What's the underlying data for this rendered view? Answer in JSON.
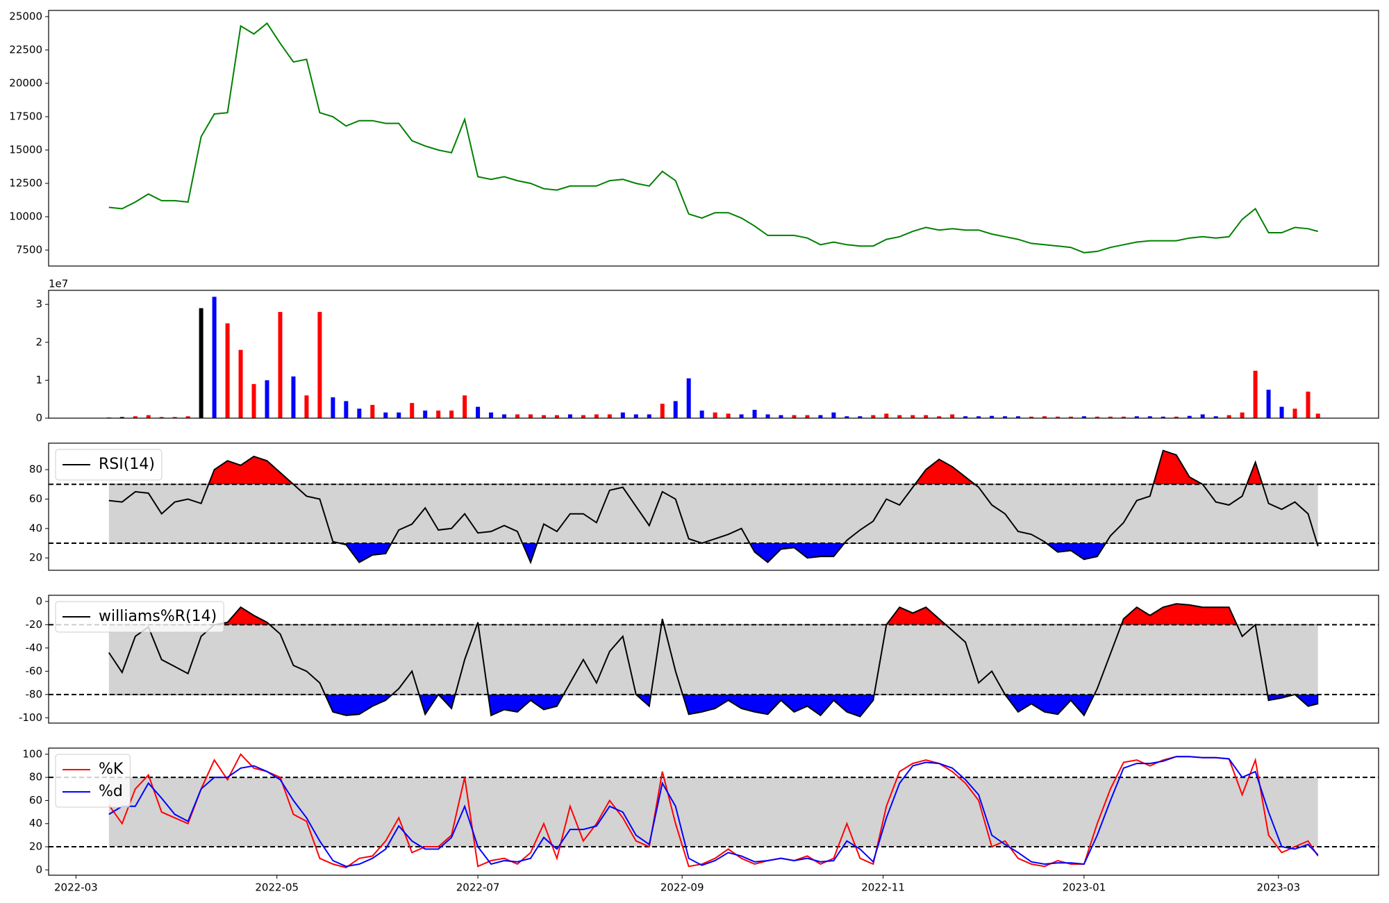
{
  "chart_data": [
    {
      "type": "line",
      "x": [
        10,
        14,
        18,
        22,
        26,
        30,
        34,
        38,
        42,
        46,
        50,
        54,
        58,
        62,
        66,
        70,
        74,
        78,
        82,
        86,
        90,
        94,
        98,
        102,
        106,
        110,
        114,
        118,
        122,
        126,
        130,
        134,
        138,
        142,
        146,
        150,
        154,
        158,
        162,
        166,
        170,
        174,
        178,
        182,
        186,
        190,
        194,
        198,
        202,
        206,
        210,
        214,
        218,
        222,
        226,
        230,
        234,
        238,
        242,
        246,
        250,
        254,
        258,
        262,
        266,
        270,
        274,
        278,
        282,
        286,
        290,
        294,
        298,
        302,
        306,
        310,
        314,
        318,
        322,
        326,
        330,
        334,
        338,
        342,
        346,
        350,
        354,
        358,
        362,
        366,
        370,
        374,
        377
      ],
      "series": [
        {
          "color": "green",
          "values": [
            10700,
            10600,
            11100,
            11700,
            11200,
            11200,
            11100,
            16000,
            17700,
            17800,
            24300,
            23700,
            24500,
            23000,
            21600,
            21800,
            17800,
            17500,
            16800,
            17200,
            17200,
            17000,
            17000,
            15700,
            15300,
            15000,
            14800,
            17300,
            13000,
            12800,
            13000,
            12700,
            12500,
            12100,
            12000,
            12300,
            12300,
            12300,
            12700,
            12800,
            12500,
            12300,
            13400,
            12700,
            10200,
            9900,
            10300,
            10300,
            9900,
            9300,
            8600,
            8600,
            8600,
            8400,
            7900,
            8100,
            7900,
            7800,
            7800,
            8300,
            8500,
            8900,
            9200,
            9000,
            9100,
            9000,
            9000,
            8700,
            8500,
            8300,
            8000,
            7900,
            7800,
            7700,
            7300,
            7400,
            7700,
            7900,
            8100,
            8200,
            8200,
            8200,
            8400,
            8500,
            8400,
            8500,
            9800,
            10600,
            8800,
            8800,
            9200,
            9100,
            8900
          ]
        }
      ],
      "xlim": [
        -8.3,
        395.4
      ],
      "ylim": [
        6302,
        25466
      ],
      "yticks": [
        7500,
        10000,
        12500,
        15000,
        17500,
        20000,
        22500,
        25000
      ]
    },
    {
      "type": "bar",
      "x": [
        10,
        14,
        18,
        22,
        26,
        30,
        34,
        38,
        42,
        46,
        50,
        54,
        58,
        62,
        66,
        70,
        74,
        78,
        82,
        86,
        90,
        94,
        98,
        102,
        106,
        110,
        114,
        118,
        122,
        126,
        130,
        134,
        138,
        142,
        146,
        150,
        154,
        158,
        162,
        166,
        170,
        174,
        178,
        182,
        186,
        190,
        194,
        198,
        202,
        206,
        210,
        214,
        218,
        222,
        226,
        230,
        234,
        238,
        242,
        246,
        250,
        254,
        258,
        262,
        266,
        270,
        274,
        278,
        282,
        286,
        290,
        294,
        298,
        302,
        306,
        310,
        314,
        318,
        322,
        326,
        330,
        334,
        338,
        342,
        346,
        350,
        354,
        358,
        362,
        366,
        370,
        374,
        377
      ],
      "values": [
        0.02,
        0.03,
        0.05,
        0.08,
        0.03,
        0.03,
        0.05,
        2.9,
        3.2,
        2.5,
        1.8,
        0.9,
        1.0,
        2.8,
        1.1,
        0.6,
        2.8,
        0.55,
        0.45,
        0.25,
        0.35,
        0.15,
        0.15,
        0.4,
        0.2,
        0.2,
        0.2,
        0.6,
        0.3,
        0.15,
        0.1,
        0.1,
        0.1,
        0.08,
        0.08,
        0.1,
        0.08,
        0.1,
        0.1,
        0.15,
        0.1,
        0.1,
        0.38,
        0.45,
        1.05,
        0.2,
        0.15,
        0.12,
        0.1,
        0.22,
        0.1,
        0.08,
        0.08,
        0.08,
        0.08,
        0.15,
        0.05,
        0.05,
        0.08,
        0.12,
        0.08,
        0.08,
        0.08,
        0.05,
        0.1,
        0.05,
        0.05,
        0.06,
        0.05,
        0.05,
        0.04,
        0.05,
        0.04,
        0.04,
        0.05,
        0.04,
        0.04,
        0.04,
        0.05,
        0.05,
        0.04,
        0.04,
        0.06,
        0.1,
        0.05,
        0.08,
        0.15,
        1.25,
        0.75,
        0.3,
        0.25,
        0.7,
        0.12
      ],
      "colors": [
        "red",
        "black",
        "red",
        "red",
        "red",
        "red",
        "red",
        "black",
        "blue",
        "red",
        "red",
        "red",
        "blue",
        "red",
        "blue",
        "red",
        "red",
        "blue",
        "blue",
        "blue",
        "red",
        "blue",
        "blue",
        "red",
        "blue",
        "red",
        "red",
        "red",
        "blue",
        "blue",
        "blue",
        "red",
        "red",
        "red",
        "red",
        "blue",
        "red",
        "red",
        "red",
        "blue",
        "blue",
        "blue",
        "red",
        "blue",
        "blue",
        "blue",
        "red",
        "red",
        "blue",
        "blue",
        "blue",
        "blue",
        "red",
        "red",
        "blue",
        "blue",
        "blue",
        "blue",
        "red",
        "red",
        "red",
        "red",
        "red",
        "red",
        "red",
        "blue",
        "blue",
        "blue",
        "blue",
        "blue",
        "red",
        "red",
        "red",
        "red",
        "blue",
        "red",
        "red",
        "red",
        "blue",
        "blue",
        "blue",
        "red",
        "blue",
        "blue",
        "blue",
        "red",
        "red",
        "red",
        "blue",
        "blue",
        "red",
        "red",
        "red"
      ],
      "y_multiplier": "1e7",
      "xlim": [
        -8.3,
        395.4
      ],
      "ylim": [
        0,
        3.37
      ],
      "yticks": [
        0,
        1,
        2,
        3
      ]
    },
    {
      "type": "line",
      "x": [
        10,
        14,
        18,
        22,
        26,
        30,
        34,
        38,
        42,
        46,
        50,
        54,
        58,
        62,
        66,
        70,
        74,
        78,
        82,
        86,
        90,
        94,
        98,
        102,
        106,
        110,
        114,
        118,
        122,
        126,
        130,
        134,
        138,
        142,
        146,
        150,
        154,
        158,
        162,
        166,
        170,
        174,
        178,
        182,
        186,
        190,
        194,
        198,
        202,
        206,
        210,
        214,
        218,
        222,
        226,
        230,
        234,
        238,
        242,
        246,
        250,
        254,
        258,
        262,
        266,
        270,
        274,
        278,
        282,
        286,
        290,
        294,
        298,
        302,
        306,
        310,
        314,
        318,
        322,
        326,
        330,
        334,
        338,
        342,
        346,
        350,
        354,
        358,
        362,
        366,
        370,
        374,
        377
      ],
      "series": [
        {
          "name": "RSI(14)",
          "color": "black",
          "values": [
            59,
            58,
            65,
            64,
            50,
            58,
            60,
            57,
            80,
            86,
            83,
            89,
            86,
            78,
            70,
            62,
            60,
            31,
            29,
            17,
            22,
            23,
            39,
            43,
            54,
            39,
            40,
            50,
            37,
            38,
            42,
            38,
            17,
            43,
            38,
            50,
            50,
            44,
            66,
            68,
            55,
            42,
            65,
            60,
            33,
            30,
            33,
            36,
            40,
            24,
            17,
            26,
            27,
            20,
            21,
            21,
            32,
            39,
            45,
            60,
            56,
            68,
            80,
            87,
            82,
            75,
            68,
            56,
            50,
            38,
            36,
            31,
            24,
            25,
            19,
            21,
            35,
            44,
            59,
            62,
            93,
            90,
            75,
            70,
            58,
            56,
            62,
            85,
            57,
            53,
            58,
            50,
            28
          ]
        }
      ],
      "levels": [
        70,
        30
      ],
      "band_color": "lightgray",
      "upper_fill": "red",
      "lower_fill": "blue",
      "legend": "upper left",
      "xlim": [
        -8.3,
        395.4
      ],
      "ylim": [
        11.6,
        98
      ],
      "yticks": [
        20,
        40,
        60,
        80
      ]
    },
    {
      "type": "line",
      "x": [
        10,
        14,
        18,
        22,
        26,
        30,
        34,
        38,
        42,
        46,
        50,
        54,
        58,
        62,
        66,
        70,
        74,
        78,
        82,
        86,
        90,
        94,
        98,
        102,
        106,
        110,
        114,
        118,
        122,
        126,
        130,
        134,
        138,
        142,
        146,
        150,
        154,
        158,
        162,
        166,
        170,
        174,
        178,
        182,
        186,
        190,
        194,
        198,
        202,
        206,
        210,
        214,
        218,
        222,
        226,
        230,
        234,
        238,
        242,
        246,
        250,
        254,
        258,
        262,
        266,
        270,
        274,
        278,
        282,
        286,
        290,
        294,
        298,
        302,
        306,
        310,
        314,
        318,
        322,
        326,
        330,
        334,
        338,
        342,
        346,
        350,
        354,
        358,
        362,
        366,
        370,
        374,
        377
      ],
      "series": [
        {
          "name": "williams%R(14)",
          "color": "black",
          "values": [
            -44,
            -61,
            -30,
            -22,
            -50,
            -56,
            -62,
            -30,
            -20,
            -18,
            -5,
            -12,
            -18,
            -28,
            -55,
            -60,
            -70,
            -95,
            -98,
            -97,
            -90,
            -85,
            -75,
            -60,
            -97,
            -80,
            -92,
            -50,
            -18,
            -98,
            -93,
            -95,
            -85,
            -93,
            -90,
            -70,
            -50,
            -70,
            -43,
            -30,
            -80,
            -90,
            -15,
            -60,
            -97,
            -95,
            -92,
            -85,
            -92,
            -95,
            -97,
            -85,
            -95,
            -90,
            -98,
            -85,
            -95,
            -99,
            -85,
            -20,
            -5,
            -10,
            -5,
            -15,
            -25,
            -35,
            -70,
            -60,
            -80,
            -95,
            -88,
            -95,
            -97,
            -85,
            -98,
            -75,
            -45,
            -15,
            -5,
            -12,
            -5,
            -2,
            -3,
            -5,
            -5,
            -5,
            -30,
            -20,
            -85,
            -83,
            -80,
            -90,
            -88
          ]
        }
      ],
      "levels": [
        -20,
        -80
      ],
      "band_color": "lightgray",
      "upper_fill": "red",
      "lower_fill": "blue",
      "legend": "upper left",
      "xlim": [
        -8.3,
        395.4
      ],
      "ylim": [
        -104.6,
        5.3
      ],
      "yticks": [
        -100,
        -80,
        -60,
        -40,
        -20,
        0
      ]
    },
    {
      "type": "line",
      "x": [
        10,
        14,
        18,
        22,
        26,
        30,
        34,
        38,
        42,
        46,
        50,
        54,
        58,
        62,
        66,
        70,
        74,
        78,
        82,
        86,
        90,
        94,
        98,
        102,
        106,
        110,
        114,
        118,
        122,
        126,
        130,
        134,
        138,
        142,
        146,
        150,
        154,
        158,
        162,
        166,
        170,
        174,
        178,
        182,
        186,
        190,
        194,
        198,
        202,
        206,
        210,
        214,
        218,
        222,
        226,
        230,
        234,
        238,
        242,
        246,
        250,
        254,
        258,
        262,
        266,
        270,
        274,
        278,
        282,
        286,
        290,
        294,
        298,
        302,
        306,
        310,
        314,
        318,
        322,
        326,
        330,
        334,
        338,
        342,
        346,
        350,
        354,
        358,
        362,
        366,
        370,
        374,
        377
      ],
      "series": [
        {
          "name": "%K",
          "color": "red",
          "values": [
            56,
            40,
            70,
            82,
            50,
            45,
            40,
            70,
            95,
            78,
            100,
            88,
            85,
            80,
            48,
            42,
            10,
            5,
            2,
            10,
            12,
            25,
            45,
            15,
            20,
            20,
            30,
            80,
            3,
            8,
            10,
            5,
            15,
            40,
            10,
            55,
            25,
            40,
            60,
            45,
            25,
            20,
            85,
            40,
            3,
            5,
            10,
            18,
            10,
            5,
            8,
            10,
            8,
            12,
            5,
            10,
            40,
            10,
            5,
            55,
            85,
            92,
            95,
            92,
            85,
            75,
            60,
            20,
            25,
            10,
            5,
            3,
            8,
            5,
            5,
            40,
            70,
            93,
            95,
            90,
            95,
            98,
            98,
            97,
            97,
            96,
            65,
            95,
            30,
            15,
            20,
            25,
            12
          ]
        },
        {
          "name": "%d",
          "color": "blue",
          "values": [
            48,
            55,
            55,
            75,
            62,
            48,
            42,
            70,
            80,
            80,
            88,
            90,
            85,
            78,
            60,
            45,
            25,
            8,
            3,
            5,
            10,
            18,
            38,
            25,
            18,
            18,
            28,
            55,
            20,
            5,
            8,
            7,
            10,
            28,
            18,
            35,
            35,
            38,
            55,
            50,
            30,
            22,
            75,
            55,
            10,
            4,
            8,
            15,
            12,
            7,
            8,
            10,
            8,
            10,
            7,
            8,
            25,
            18,
            7,
            45,
            75,
            90,
            93,
            92,
            88,
            78,
            65,
            30,
            22,
            15,
            7,
            5,
            6,
            6,
            5,
            30,
            60,
            88,
            92,
            92,
            94,
            98,
            98,
            97,
            97,
            96,
            80,
            85,
            50,
            20,
            18,
            22,
            13
          ]
        }
      ],
      "levels": [
        80,
        20
      ],
      "band_color": "lightgray",
      "legend": "upper left",
      "xlim": [
        -8.3,
        395.4
      ],
      "ylim": [
        -4.6,
        105.3
      ],
      "yticks": [
        0,
        20,
        40,
        60,
        80,
        100
      ],
      "xticks": [
        {
          "value": 0,
          "label": "2022-03"
        },
        {
          "value": 61,
          "label": "2022-05"
        },
        {
          "value": 122,
          "label": "2022-07"
        },
        {
          "value": 184,
          "label": "2022-09"
        },
        {
          "value": 245,
          "label": "2022-11"
        },
        {
          "value": 306,
          "label": "2023-01"
        },
        {
          "value": 365,
          "label": "2023-03"
        }
      ]
    }
  ]
}
